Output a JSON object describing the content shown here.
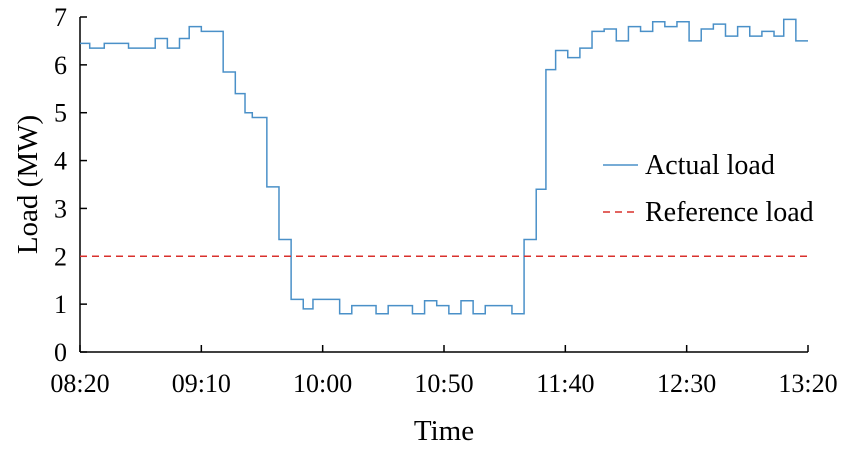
{
  "chart_data": {
    "type": "line",
    "xlabel": "Time",
    "ylabel": "Load (MW)",
    "x_ticks": [
      "08:20",
      "09:10",
      "10:00",
      "10:50",
      "11:40",
      "12:30",
      "13:20"
    ],
    "x_range": [
      "08:20",
      "13:20"
    ],
    "y_ticks": [
      0,
      1,
      2,
      3,
      4,
      5,
      6,
      7
    ],
    "ylim": [
      0,
      7
    ],
    "grid": false,
    "legend_position": "right",
    "series": [
      {
        "name": "Actual load",
        "color": "#4a90c8",
        "style": "solid",
        "step": true,
        "points": [
          [
            "08:20",
            6.45
          ],
          [
            "08:24",
            6.35
          ],
          [
            "08:30",
            6.45
          ],
          [
            "08:40",
            6.35
          ],
          [
            "08:51",
            6.55
          ],
          [
            "08:56",
            6.35
          ],
          [
            "09:01",
            6.55
          ],
          [
            "09:05",
            6.8
          ],
          [
            "09:10",
            6.7
          ],
          [
            "09:19",
            5.85
          ],
          [
            "09:24",
            5.4
          ],
          [
            "09:28",
            5.0
          ],
          [
            "09:31",
            4.9
          ],
          [
            "09:37",
            3.45
          ],
          [
            "09:42",
            2.35
          ],
          [
            "09:47",
            1.1
          ],
          [
            "09:52",
            0.9
          ],
          [
            "09:56",
            1.1
          ],
          [
            "10:07",
            0.8
          ],
          [
            "10:12",
            0.97
          ],
          [
            "10:22",
            0.8
          ],
          [
            "10:27",
            0.97
          ],
          [
            "10:37",
            0.8
          ],
          [
            "10:42",
            1.07
          ],
          [
            "10:47",
            0.97
          ],
          [
            "10:52",
            0.8
          ],
          [
            "10:57",
            1.07
          ],
          [
            "11:02",
            0.8
          ],
          [
            "11:07",
            0.97
          ],
          [
            "11:18",
            0.8
          ],
          [
            "11:23",
            2.35
          ],
          [
            "11:28",
            3.4
          ],
          [
            "11:32",
            5.9
          ],
          [
            "11:36",
            6.3
          ],
          [
            "11:41",
            6.15
          ],
          [
            "11:46",
            6.35
          ],
          [
            "11:51",
            6.7
          ],
          [
            "11:56",
            6.75
          ],
          [
            "12:01",
            6.5
          ],
          [
            "12:06",
            6.8
          ],
          [
            "12:11",
            6.7
          ],
          [
            "12:16",
            6.9
          ],
          [
            "12:21",
            6.8
          ],
          [
            "12:26",
            6.9
          ],
          [
            "12:31",
            6.5
          ],
          [
            "12:36",
            6.75
          ],
          [
            "12:41",
            6.85
          ],
          [
            "12:46",
            6.6
          ],
          [
            "12:51",
            6.8
          ],
          [
            "12:56",
            6.6
          ],
          [
            "13:01",
            6.7
          ],
          [
            "13:06",
            6.6
          ],
          [
            "13:10",
            6.95
          ],
          [
            "13:15",
            6.5
          ],
          [
            "13:20",
            6.5
          ]
        ]
      },
      {
        "name": "Reference load",
        "color": "#d9302c",
        "style": "dashed",
        "points": [
          [
            "08:20",
            2
          ],
          [
            "13:20",
            2
          ]
        ]
      }
    ]
  }
}
